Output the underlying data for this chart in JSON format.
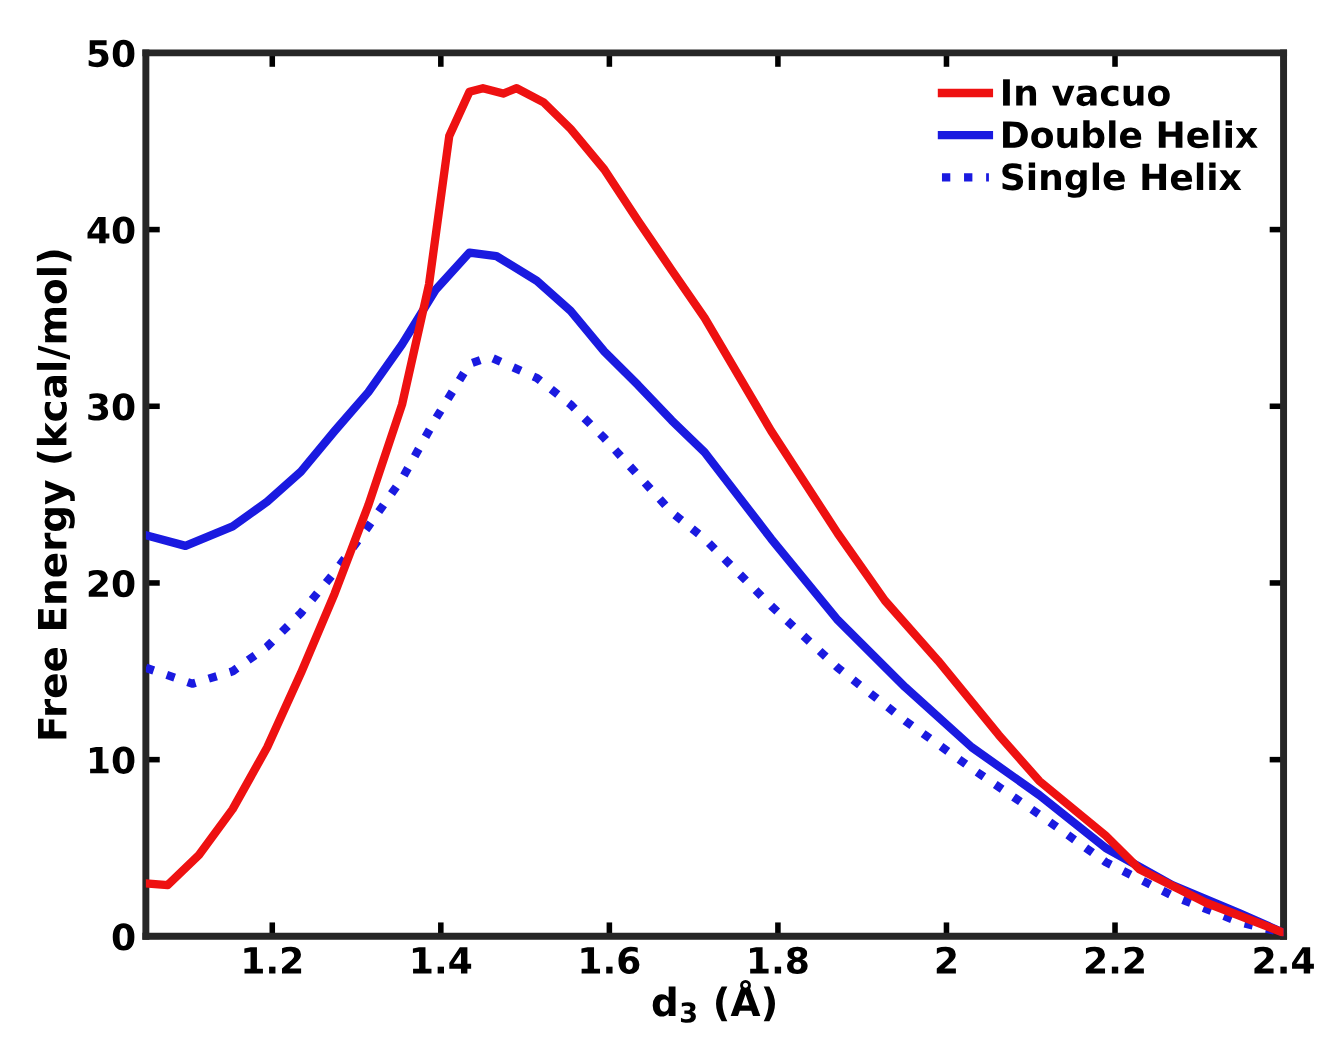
{
  "chart_data": {
    "type": "line",
    "xlabel": "d$_{3}$ (Å)",
    "ylabel": "Free Energy (kcal/mol)",
    "xlim": [
      1.05,
      2.4
    ],
    "ylim": [
      0,
      50
    ],
    "xticks": [
      1.2,
      1.4,
      1.6,
      1.8,
      2,
      2.2,
      2.4
    ],
    "yticks": [
      0,
      10,
      20,
      30,
      40,
      50
    ],
    "grid": false,
    "legend": "top right",
    "series": [
      {
        "name": "In vacuo",
        "color": "#ee1111",
        "line_style": "solid",
        "x": [
          1.05,
          1.076,
          1.113,
          1.153,
          1.194,
          1.234,
          1.274,
          1.314,
          1.354,
          1.386,
          1.41,
          1.434,
          1.45,
          1.474,
          1.49,
          1.522,
          1.554,
          1.594,
          1.634,
          1.674,
          1.713,
          1.792,
          1.871,
          1.927,
          1.99,
          2.062,
          2.11,
          2.189,
          2.229,
          2.308,
          2.4
        ],
        "values": [
          3.0,
          2.9,
          4.6,
          7.2,
          10.7,
          14.9,
          19.4,
          24.4,
          30.1,
          36.9,
          45.3,
          47.8,
          48,
          47.7,
          48,
          47.2,
          45.7,
          43.4,
          40.5,
          37.7,
          35.0,
          28.6,
          22.8,
          19.0,
          15.6,
          11.4,
          8.8,
          5.7,
          3.8,
          1.9,
          0.2
        ]
      },
      {
        "name": "Double Helix",
        "color": "#1a1ae0",
        "line_style": "solid",
        "x": [
          1.05,
          1.097,
          1.153,
          1.194,
          1.234,
          1.274,
          1.314,
          1.354,
          1.394,
          1.434,
          1.466,
          1.514,
          1.554,
          1.594,
          1.634,
          1.674,
          1.713,
          1.792,
          1.871,
          1.951,
          2.03,
          2.11,
          2.189,
          2.268,
          2.348,
          2.4
        ],
        "values": [
          22.7,
          22.1,
          23.2,
          24.6,
          26.3,
          28.6,
          30.8,
          33.5,
          36.6,
          38.7,
          38.5,
          37.1,
          35.4,
          33.1,
          31.2,
          29.2,
          27.4,
          22.5,
          17.9,
          14.1,
          10.7,
          8.0,
          5.0,
          2.9,
          1.3,
          0.2
        ]
      },
      {
        "name": "Single Helix",
        "color": "#1a1ae0",
        "line_style": "dotted",
        "x": [
          1.05,
          1.105,
          1.153,
          1.194,
          1.234,
          1.274,
          1.314,
          1.354,
          1.394,
          1.434,
          1.458,
          1.514,
          1.554,
          1.594,
          1.634,
          1.674,
          1.713,
          1.792,
          1.871,
          1.951,
          2.03,
          2.11,
          2.189,
          2.268,
          2.348,
          2.4
        ],
        "values": [
          15.2,
          14.3,
          15.0,
          16.4,
          18.3,
          20.6,
          23.2,
          25.9,
          29.3,
          32.4,
          32.8,
          31.6,
          30.1,
          28.2,
          26.1,
          24.0,
          22.5,
          18.7,
          15.2,
          12.2,
          9.5,
          6.9,
          4.2,
          2.3,
          0.8,
          0.2
        ]
      }
    ]
  }
}
